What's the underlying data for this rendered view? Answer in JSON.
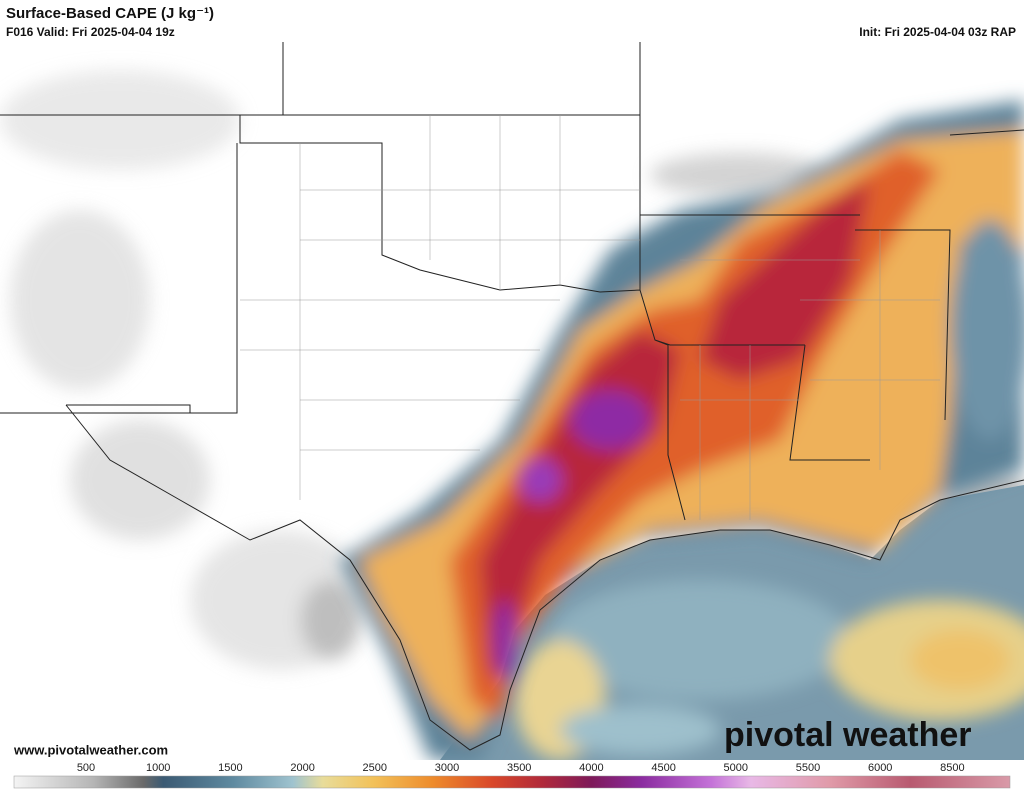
{
  "header": {
    "title": "Surface-Based CAPE (J kg⁻¹)",
    "valid": "F016 Valid: Fri 2025-04-04 19z",
    "init": "Init: Fri 2025-04-04 03z RAP"
  },
  "footer": {
    "url": "www.pivotalweather.com",
    "logo": "pivotal weather"
  },
  "colorbar": {
    "labels": [
      500,
      1000,
      1500,
      2000,
      2500,
      3000,
      3500,
      4000,
      4500,
      5000,
      5500,
      6000,
      8500
    ]
  }
}
